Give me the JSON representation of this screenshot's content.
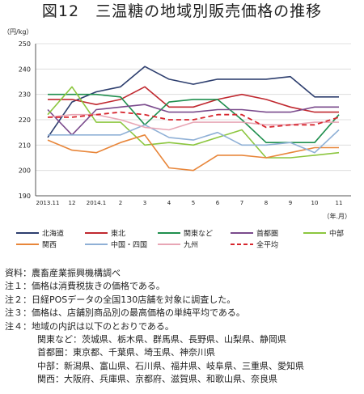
{
  "title": "図12　三温糖の地域別販売価格の推移",
  "chart_data": {
    "type": "line",
    "unit_label": "（円/kg）",
    "x_unit_label": "（年.月）",
    "x_ticks": [
      "2013.11",
      "12",
      "2014.1",
      "2",
      "3",
      "4",
      "5",
      "6",
      "7",
      "8",
      "9",
      "10",
      "11"
    ],
    "ylim": [
      190,
      250
    ],
    "yticks": [
      190,
      200,
      210,
      220,
      230,
      240,
      250
    ],
    "grid": true,
    "legend_position": "bottom",
    "series": [
      {
        "name": "北海道",
        "color": "#2d3e6e",
        "dash": false,
        "values": [
          213,
          227,
          231,
          233,
          241,
          236,
          234,
          236,
          236,
          236,
          237,
          229,
          229
        ]
      },
      {
        "name": "東北",
        "color": "#c0282f",
        "dash": false,
        "values": [
          228,
          228,
          226,
          228,
          233,
          225,
          225,
          228,
          230,
          228,
          225,
          223,
          223
        ]
      },
      {
        "name": "関東など",
        "color": "#1f8f4e",
        "dash": false,
        "values": [
          230,
          230,
          230,
          229,
          218,
          227,
          228,
          228,
          220,
          211,
          211,
          211,
          222
        ]
      },
      {
        "name": "首都圏",
        "color": "#7a4a8c",
        "dash": false,
        "values": [
          224,
          214,
          224,
          225,
          226,
          223,
          223,
          224,
          224,
          223,
          223,
          225,
          225
        ]
      },
      {
        "name": "中部",
        "color": "#8cc63f",
        "dash": false,
        "values": [
          222,
          233,
          219,
          219,
          210,
          211,
          210,
          213,
          216,
          205,
          205,
          206,
          207
        ]
      },
      {
        "name": "関西",
        "color": "#e8863a",
        "dash": false,
        "values": [
          212,
          208,
          207,
          211,
          214,
          201,
          200,
          206,
          206,
          205,
          207,
          209,
          209
        ]
      },
      {
        "name": "中国・四国",
        "color": "#8fb0d6",
        "dash": false,
        "values": [
          214,
          214,
          214,
          214,
          218,
          213,
          212,
          215,
          210,
          210,
          211,
          207,
          216
        ]
      },
      {
        "name": "九州",
        "color": "#e8a6b5",
        "dash": false,
        "values": [
          221,
          222,
          222,
          220,
          217,
          216,
          219,
          219,
          219,
          218,
          218,
          219,
          219
        ]
      },
      {
        "name": "全平均",
        "color": "#d7262e",
        "dash": true,
        "values": [
          221,
          221,
          222,
          223,
          222,
          220,
          220,
          222,
          222,
          217,
          218,
          218,
          221
        ]
      }
    ]
  },
  "notes": [
    {
      "text": "資料：農畜産業振興機構調べ",
      "indent": false
    },
    {
      "text": "注１：価格は消費税抜きの価格である。",
      "indent": false
    },
    {
      "text": "注２：日経POSデータの全国130店舗を対象に調査した。",
      "indent": false
    },
    {
      "text": "注３：価格は、店舗別商品別の最高価格の単純平均である。",
      "indent": false
    },
    {
      "text": "注４：地域の内訳は以下のとおりである。",
      "indent": false
    },
    {
      "text": "関東など：茨城県、栃木県、群馬県、長野県、山梨県、静岡県",
      "indent": true
    },
    {
      "text": "首都圏：東京都、千葉県、埼玉県、神奈川県",
      "indent": true
    },
    {
      "text": "中部：新潟県、富山県、石川県、福井県、岐阜県、三重県、愛知県",
      "indent": true
    },
    {
      "text": "関西：大阪府、兵庫県、京都府、滋賀県、和歌山県、奈良県",
      "indent": true
    }
  ]
}
